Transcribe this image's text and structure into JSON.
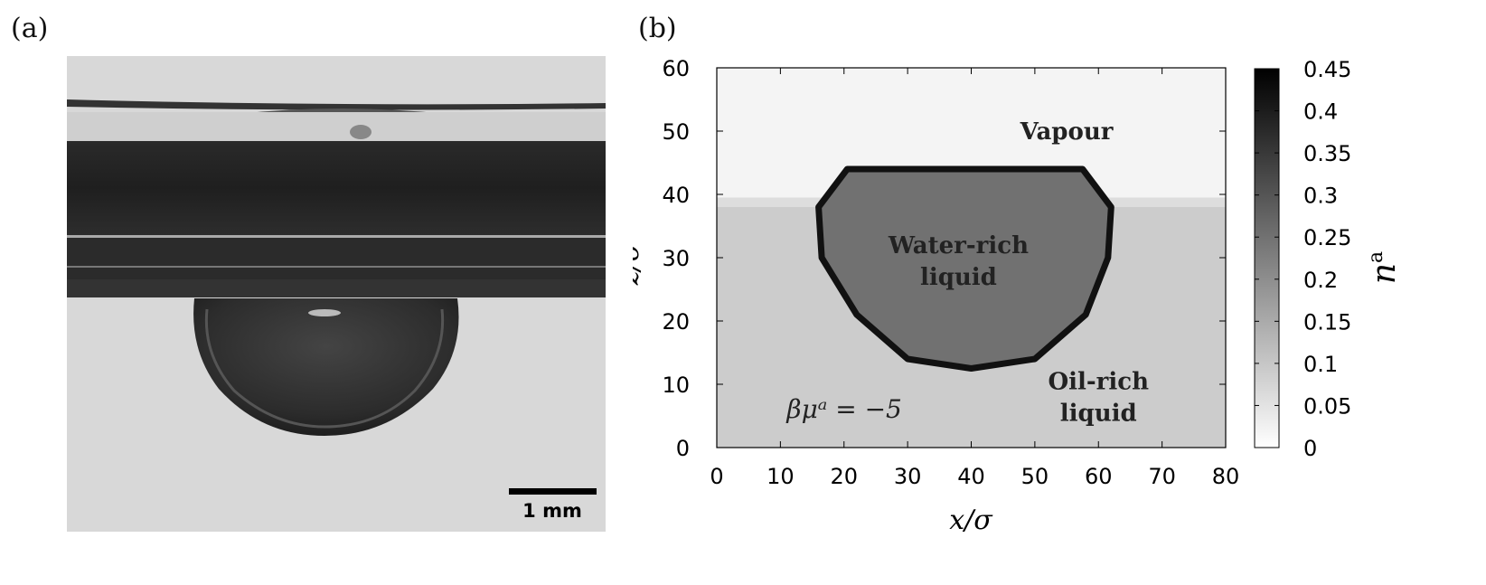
{
  "panels": {
    "a": {
      "label": "(a)",
      "scalebar_label": "1 mm"
    },
    "b": {
      "label": "(b)"
    }
  },
  "chart_data": {
    "type": "heatmap",
    "xlabel": "x/σ",
    "ylabel": "z/σ",
    "xlim": [
      0,
      80
    ],
    "ylim": [
      0,
      60
    ],
    "xticks": [
      0,
      10,
      20,
      30,
      40,
      50,
      60,
      70,
      80
    ],
    "yticks": [
      0,
      10,
      20,
      30,
      40,
      50,
      60
    ],
    "colorbar": {
      "label": "n^a",
      "range": [
        0,
        0.45
      ],
      "ticks": [
        "0",
        "0.05",
        "0.1",
        "0.15",
        "0.2",
        "0.25",
        "0.3",
        "0.35",
        "0.4",
        "0.45"
      ],
      "colormap": "white-to-black"
    },
    "regions": [
      {
        "name": "Vapour",
        "n_a": 0.02,
        "z_range": [
          38.5,
          60
        ]
      },
      {
        "name": "Oil-rich liquid",
        "n_a": 0.09,
        "z_range": [
          0,
          38.5
        ]
      },
      {
        "name": "Water-rich liquid",
        "n_a": 0.25,
        "center": [
          39,
          28.5
        ],
        "rim_n_a": 0.42
      }
    ],
    "annotations": [
      {
        "text": "Vapour",
        "x": 55,
        "y": 50
      },
      {
        "text": "Water-rich",
        "x": 38,
        "y": 32
      },
      {
        "text": "liquid",
        "x": 38,
        "y": 27
      },
      {
        "text": "Oil-rich",
        "x": 60,
        "y": 10.5
      },
      {
        "text": "liquid",
        "x": 60,
        "y": 5.5
      },
      {
        "text": "βμᵃ = −5",
        "x": 11,
        "y": 6
      }
    ]
  }
}
